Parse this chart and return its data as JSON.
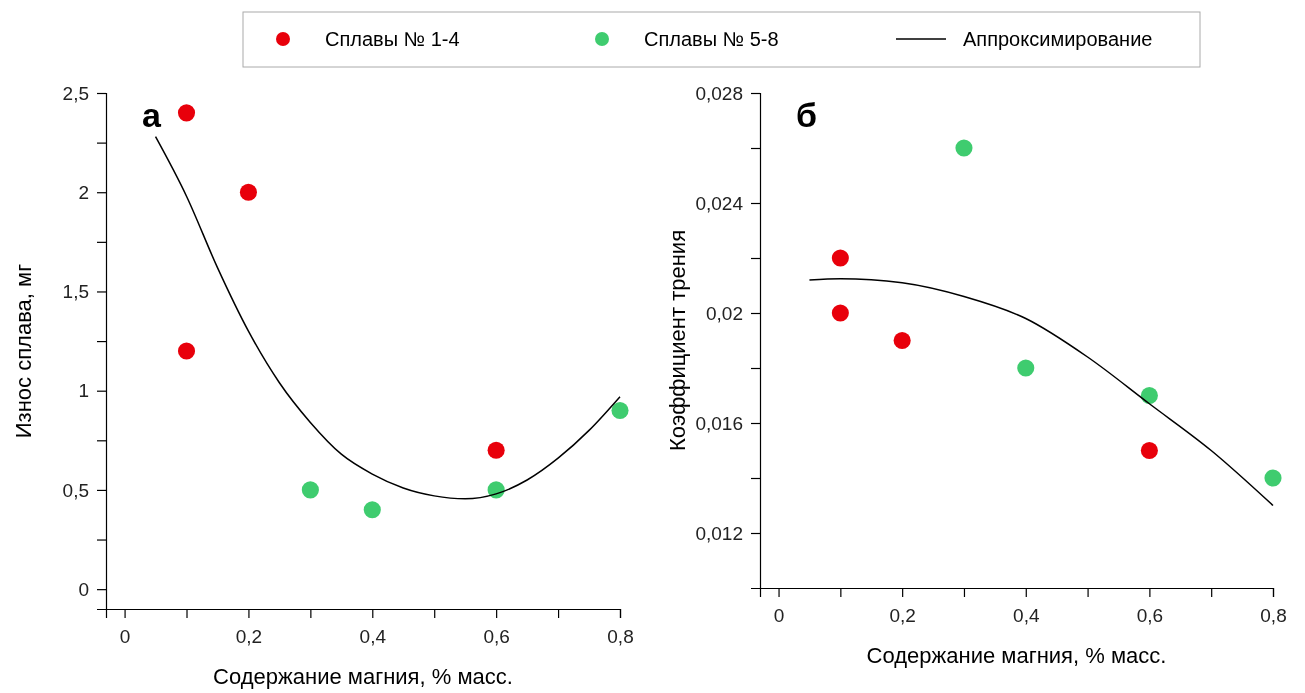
{
  "chart_data": [
    {
      "type": "scatter",
      "xlabel": "Содержание магния, % масс.",
      "ylabel": "Износ сплава, мг",
      "annotations": [
        "а"
      ],
      "legend": "top",
      "grid": false,
      "xlim": [
        -0.03,
        0.8
      ],
      "ylim": [
        -0.1,
        2.5
      ],
      "xticks": [
        {
          "value": 0,
          "label": "0"
        },
        {
          "value": 0.1,
          "label": null
        },
        {
          "value": 0.2,
          "label": "0,2"
        },
        {
          "value": 0.3,
          "label": null
        },
        {
          "value": 0.4,
          "label": "0,4"
        },
        {
          "value": 0.5,
          "label": null
        },
        {
          "value": 0.6,
          "label": "0,6"
        },
        {
          "value": 0.7,
          "label": null
        },
        {
          "value": 0.8,
          "label": "0,8"
        }
      ],
      "yticks": [
        {
          "value": 0,
          "label": "0"
        },
        {
          "value": 0.25,
          "label": null
        },
        {
          "value": 0.5,
          "label": "0,5"
        },
        {
          "value": 0.75,
          "label": null
        },
        {
          "value": 1,
          "label": "1"
        },
        {
          "value": 1.25,
          "label": null
        },
        {
          "value": 1.5,
          "label": "1,5"
        },
        {
          "value": 1.75,
          "label": null
        },
        {
          "value": 2,
          "label": "2"
        },
        {
          "value": 2.25,
          "label": null
        },
        {
          "value": 2.5,
          "label": "2,5"
        }
      ],
      "series": [
        {
          "name": "Сплавы № 1-4",
          "marker": "circle",
          "color": "#e8000b",
          "x": [
            0.1,
            0.2,
            0.1,
            0.6
          ],
          "values": [
            2.4,
            2.0,
            1.2,
            0.7
          ]
        },
        {
          "name": "Сплавы № 5-8",
          "marker": "circle",
          "color": "#3fcc6f",
          "x": [
            0.3,
            0.4,
            0.6,
            0.8
          ],
          "values": [
            0.5,
            0.4,
            0.5,
            0.9
          ]
        },
        {
          "name": "Аппроксимирование",
          "type": "line",
          "color": "#000000",
          "x": [
            0.05,
            0.1,
            0.15,
            0.2,
            0.25,
            0.3,
            0.35,
            0.4,
            0.45,
            0.5,
            0.55,
            0.6,
            0.65,
            0.7,
            0.75,
            0.8
          ],
          "values": [
            2.28,
            1.98,
            1.62,
            1.3,
            1.04,
            0.84,
            0.68,
            0.58,
            0.51,
            0.47,
            0.455,
            0.48,
            0.55,
            0.66,
            0.8,
            0.97
          ]
        }
      ]
    },
    {
      "type": "scatter",
      "xlabel": "Содержание магния, % масс.",
      "ylabel": "Коэффициент трения",
      "annotations": [
        "б"
      ],
      "grid": false,
      "xlim": [
        -0.03,
        0.8
      ],
      "ylim": [
        0.01,
        0.028
      ],
      "xticks": [
        {
          "value": 0,
          "label": "0"
        },
        {
          "value": 0.1,
          "label": null
        },
        {
          "value": 0.2,
          "label": "0,2"
        },
        {
          "value": 0.3,
          "label": null
        },
        {
          "value": 0.4,
          "label": "0,4"
        },
        {
          "value": 0.5,
          "label": null
        },
        {
          "value": 0.6,
          "label": "0,6"
        },
        {
          "value": 0.7,
          "label": null
        },
        {
          "value": 0.8,
          "label": "0,8"
        }
      ],
      "yticks": [
        {
          "value": 0.012,
          "label": "0,012"
        },
        {
          "value": 0.014,
          "label": null
        },
        {
          "value": 0.016,
          "label": "0,016"
        },
        {
          "value": 0.018,
          "label": null
        },
        {
          "value": 0.02,
          "label": "0,02"
        },
        {
          "value": 0.022,
          "label": null
        },
        {
          "value": 0.024,
          "label": "0,024"
        },
        {
          "value": 0.026,
          "label": null
        },
        {
          "value": 0.028,
          "label": "0,028"
        }
      ],
      "series": [
        {
          "marker": "circle",
          "color": "#e8000b",
          "x": [
            0.1,
            0.1,
            0.2,
            0.6
          ],
          "values": [
            0.022,
            0.02,
            0.019,
            0.015
          ]
        },
        {
          "marker": "circle",
          "color": "#3fcc6f",
          "x": [
            0.3,
            0.4,
            0.6,
            0.8
          ],
          "values": [
            0.026,
            0.018,
            0.017,
            0.014
          ]
        },
        {
          "type": "line",
          "color": "#000000",
          "x": [
            0.05,
            0.1,
            0.2,
            0.3,
            0.4,
            0.5,
            0.6,
            0.7,
            0.8
          ],
          "values": [
            0.0212,
            0.02125,
            0.0211,
            0.0206,
            0.0198,
            0.0184,
            0.0167,
            0.015,
            0.013
          ]
        }
      ]
    }
  ]
}
